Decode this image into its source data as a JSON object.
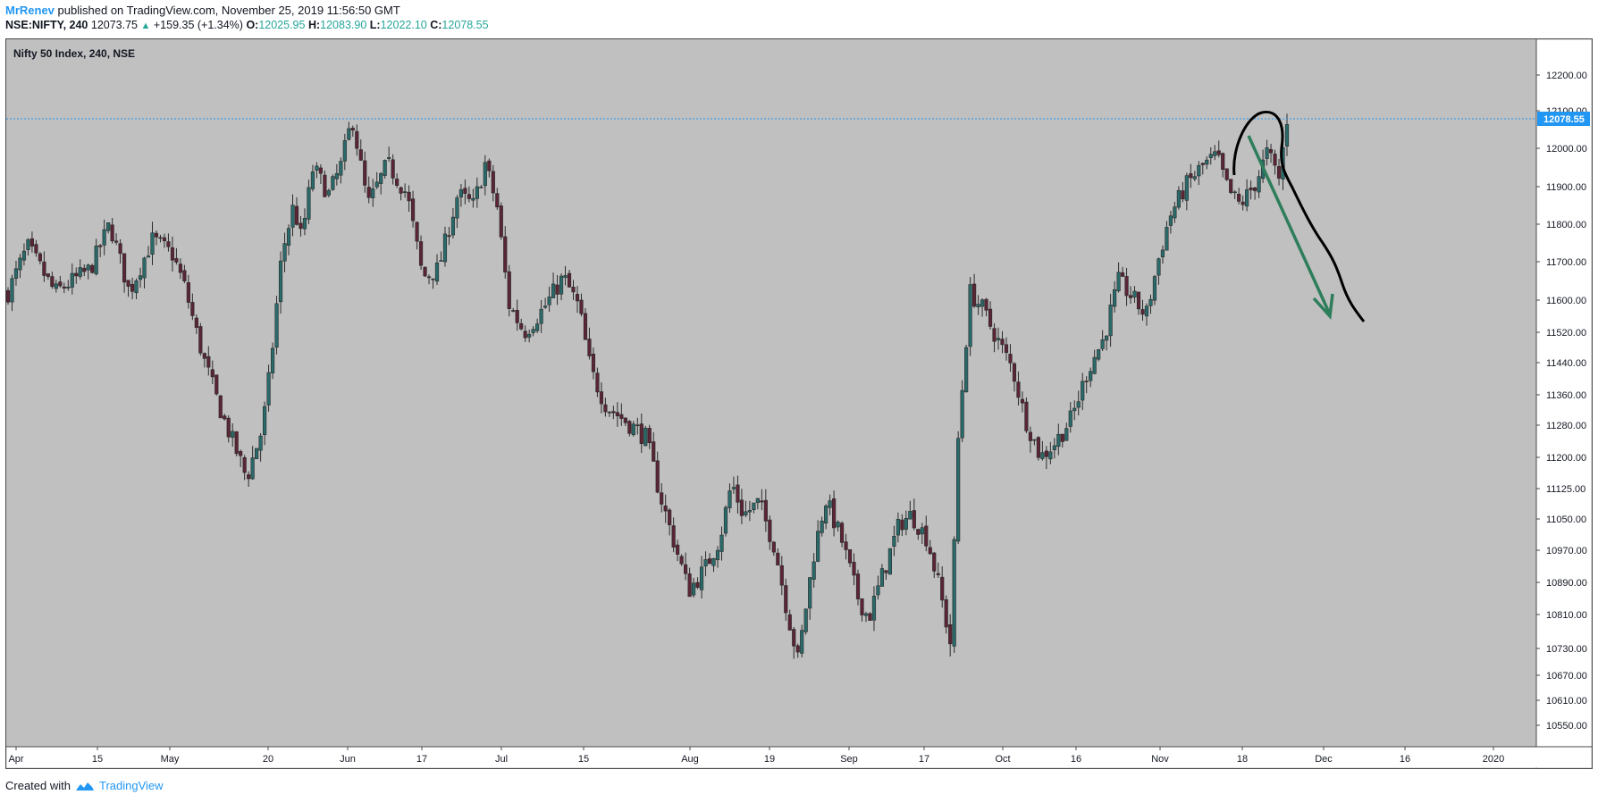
{
  "header": {
    "author": "MrRenev",
    "published_text": "published on TradingView.com, November 25, 2019 11:56:50 GMT",
    "symbol": "NSE:NIFTY, 240",
    "last_price": "12073.75",
    "change_arrow": "▲",
    "change": "+159.35 (+1.34%)",
    "ohlc": [
      {
        "label": "O:",
        "value": "12025.95"
      },
      {
        "label": "H:",
        "value": "12083.90"
      },
      {
        "label": "L:",
        "value": "12022.10"
      },
      {
        "label": "C:",
        "value": "12078.55"
      }
    ]
  },
  "footer": {
    "created_with": "Created with",
    "brand": "TradingView",
    "brand_icon": "tradingview-cloud-icon"
  },
  "colors": {
    "background": "#c0c0c0",
    "candle_up": "#2a6a6a",
    "candle_down": "#5a2535",
    "wick": "#2b2b2b",
    "price_line": "#2196f3",
    "price_label_bg": "#2196f3",
    "annotation_arrow": "#2e7d5b",
    "annotation_curve": "#000000",
    "accent_text": "#26a69a",
    "brand": "#2196f3"
  },
  "chart_data": {
    "type": "candlestick",
    "title": "Nifty 50 Index, 240, NSE",
    "y_ticks": [
      "12200.00",
      "12100.00",
      "12000.00",
      "11900.00",
      "11800.00",
      "11700.00",
      "11600.00",
      "11520.00",
      "11440.00",
      "11360.00",
      "11280.00",
      "11200.00",
      "11125.00",
      "11050.00",
      "10970.00",
      "10890.00",
      "10810.00",
      "10730.00",
      "10670.00",
      "10610.00",
      "10550.00"
    ],
    "x_ticks": [
      "Apr",
      "15",
      "May",
      "20",
      "Jun",
      "17",
      "Jul",
      "15",
      "Aug",
      "19",
      "Sep",
      "17",
      "Oct",
      "16",
      "Nov",
      "18",
      "Dec",
      "16",
      "2020"
    ],
    "current_price_label": "12078.55",
    "current_price": 12078.55,
    "grid": false,
    "close_path": [
      {
        "t": 0.0,
        "close": 11620
      },
      {
        "t": 0.5,
        "close": 11740
      },
      {
        "t": 1.2,
        "close": 11620
      },
      {
        "t": 2.1,
        "close": 11680
      },
      {
        "t": 2.6,
        "close": 11800
      },
      {
        "t": 3.1,
        "close": 11620
      },
      {
        "t": 3.7,
        "close": 11760
      },
      {
        "t": 4.2,
        "close": 11720
      },
      {
        "t": 4.5,
        "close": 11640
      },
      {
        "t": 5.0,
        "close": 11450
      },
      {
        "t": 5.5,
        "close": 11300
      },
      {
        "t": 6.1,
        "close": 11150
      },
      {
        "t": 6.5,
        "close": 11270
      },
      {
        "t": 6.7,
        "close": 11420
      },
      {
        "t": 7.0,
        "close": 11720
      },
      {
        "t": 7.3,
        "close": 11850
      },
      {
        "t": 7.5,
        "close": 11760
      },
      {
        "t": 7.8,
        "close": 11950
      },
      {
        "t": 8.2,
        "close": 11880
      },
      {
        "t": 8.5,
        "close": 11950
      },
      {
        "t": 8.8,
        "close": 12080
      },
      {
        "t": 9.2,
        "close": 11850
      },
      {
        "t": 9.7,
        "close": 11960
      },
      {
        "t": 10.2,
        "close": 11880
      },
      {
        "t": 10.6,
        "close": 11660
      },
      {
        "t": 11.0,
        "close": 11680
      },
      {
        "t": 11.5,
        "close": 11880
      },
      {
        "t": 11.9,
        "close": 11850
      },
      {
        "t": 12.2,
        "close": 11960
      },
      {
        "t": 12.5,
        "close": 11850
      },
      {
        "t": 12.8,
        "close": 11590
      },
      {
        "t": 13.2,
        "close": 11520
      },
      {
        "t": 13.7,
        "close": 11580
      },
      {
        "t": 14.2,
        "close": 11660
      },
      {
        "t": 14.6,
        "close": 11580
      },
      {
        "t": 14.9,
        "close": 11420
      },
      {
        "t": 15.3,
        "close": 11330
      },
      {
        "t": 15.8,
        "close": 11290
      },
      {
        "t": 16.3,
        "close": 11250
      },
      {
        "t": 16.7,
        "close": 11100
      },
      {
        "t": 17.0,
        "close": 11000
      },
      {
        "t": 17.4,
        "close": 10870
      },
      {
        "t": 17.8,
        "close": 10920
      },
      {
        "t": 18.2,
        "close": 11000
      },
      {
        "t": 18.5,
        "close": 11140
      },
      {
        "t": 18.8,
        "close": 11060
      },
      {
        "t": 19.2,
        "close": 11090
      },
      {
        "t": 19.6,
        "close": 10980
      },
      {
        "t": 19.9,
        "close": 10830
      },
      {
        "t": 20.2,
        "close": 10700
      },
      {
        "t": 20.6,
        "close": 10960
      },
      {
        "t": 20.9,
        "close": 11100
      },
      {
        "t": 21.3,
        "close": 11000
      },
      {
        "t": 21.7,
        "close": 10860
      },
      {
        "t": 22.0,
        "close": 10800
      },
      {
        "t": 22.4,
        "close": 10920
      },
      {
        "t": 22.8,
        "close": 11040
      },
      {
        "t": 23.1,
        "close": 11060
      },
      {
        "t": 23.5,
        "close": 11000
      },
      {
        "t": 23.8,
        "close": 10880
      },
      {
        "t": 24.1,
        "close": 10740
      },
      {
        "t": 24.3,
        "close": 11260
      },
      {
        "t": 24.6,
        "close": 11620
      },
      {
        "t": 24.9,
        "close": 11580
      },
      {
        "t": 25.3,
        "close": 11500
      },
      {
        "t": 25.7,
        "close": 11420
      },
      {
        "t": 26.0,
        "close": 11300
      },
      {
        "t": 26.4,
        "close": 11200
      },
      {
        "t": 26.8,
        "close": 11240
      },
      {
        "t": 27.2,
        "close": 11300
      },
      {
        "t": 27.6,
        "close": 11420
      },
      {
        "t": 28.0,
        "close": 11500
      },
      {
        "t": 28.4,
        "close": 11650
      },
      {
        "t": 28.8,
        "close": 11600
      },
      {
        "t": 29.1,
        "close": 11560
      },
      {
        "t": 29.4,
        "close": 11700
      },
      {
        "t": 29.7,
        "close": 11820
      },
      {
        "t": 30.1,
        "close": 11900
      },
      {
        "t": 30.5,
        "close": 11950
      },
      {
        "t": 30.9,
        "close": 11980
      },
      {
        "t": 31.2,
        "close": 11890
      },
      {
        "t": 31.5,
        "close": 11850
      },
      {
        "t": 31.9,
        "close": 11910
      },
      {
        "t": 32.2,
        "close": 11990
      },
      {
        "t": 32.5,
        "close": 11920
      },
      {
        "t": 32.7,
        "close": 12078
      }
    ]
  }
}
